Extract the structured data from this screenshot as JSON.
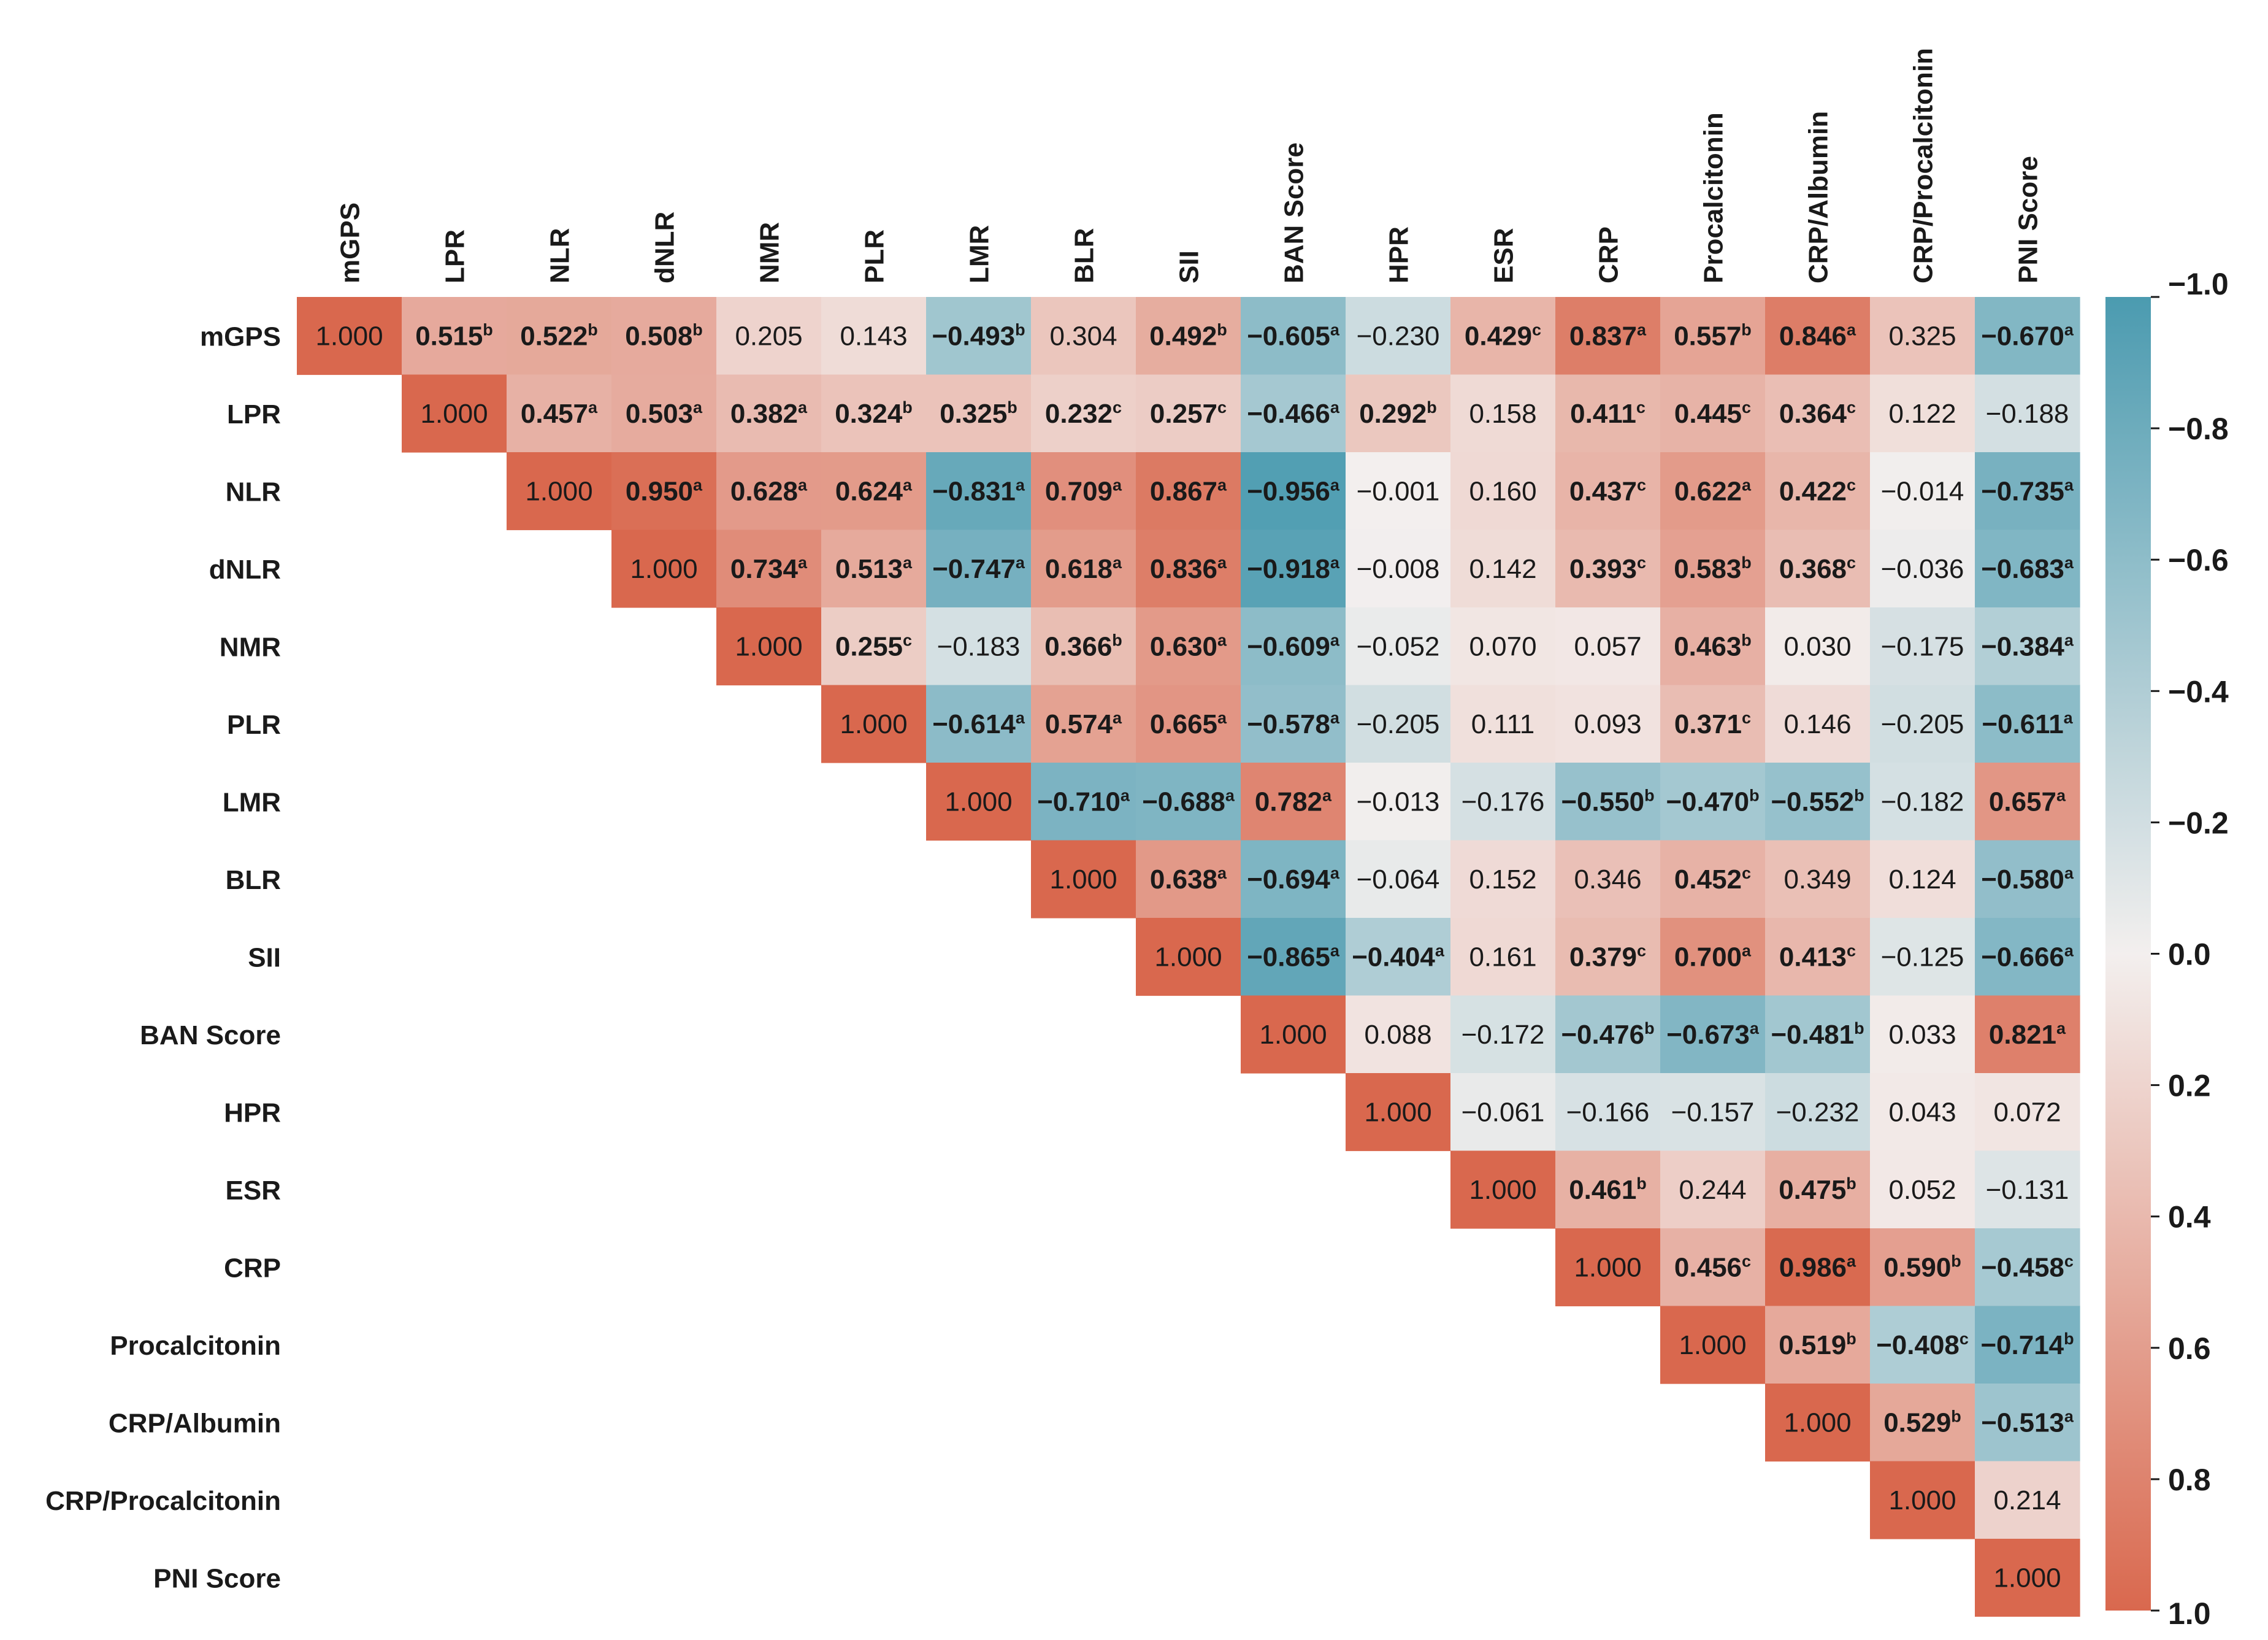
{
  "chart_data": {
    "type": "heatmap",
    "title": "",
    "layout": "upper-triangular correlation matrix",
    "row_labels": [
      "mGPS",
      "LPR",
      "NLR",
      "dNLR",
      "NMR",
      "PLR",
      "LMR",
      "BLR",
      "SII",
      "BAN Score",
      "HPR",
      "ESR",
      "CRP",
      "Procalcitonin",
      "CRP/Albumin",
      "CRP/Procalcitonin",
      "PNI Score"
    ],
    "col_labels": [
      "mGPS",
      "LPR",
      "NLR",
      "dNLR",
      "NMR",
      "PLR",
      "LMR",
      "BLR",
      "SII",
      "BAN Score",
      "HPR",
      "ESR",
      "CRP",
      "Procalcitonin",
      "CRP/Albumin",
      "CRP/Procalcitonin",
      "PNI Score"
    ],
    "rows": [
      [
        [
          "1.000",
          ""
        ],
        [
          "0.515",
          "b"
        ],
        [
          "0.522",
          "b"
        ],
        [
          "0.508",
          "b"
        ],
        [
          "0.205",
          ""
        ],
        [
          "0.143",
          ""
        ],
        [
          "−0.493",
          "b"
        ],
        [
          "0.304",
          ""
        ],
        [
          "0.492",
          "b"
        ],
        [
          "−0.605",
          "a"
        ],
        [
          "−0.230",
          ""
        ],
        [
          "0.429",
          "c"
        ],
        [
          "0.837",
          "a"
        ],
        [
          "0.557",
          "b"
        ],
        [
          "0.846",
          "a"
        ],
        [
          "0.325",
          ""
        ],
        [
          "−0.670",
          "a"
        ]
      ],
      [
        [
          "1.000",
          ""
        ],
        [
          "0.457",
          "a"
        ],
        [
          "0.503",
          "a"
        ],
        [
          "0.382",
          "a"
        ],
        [
          "0.324",
          "b"
        ],
        [
          "0.325",
          "b"
        ],
        [
          "0.232",
          "c"
        ],
        [
          "0.257",
          "c"
        ],
        [
          "−0.466",
          "a"
        ],
        [
          "0.292",
          "b"
        ],
        [
          "0.158",
          ""
        ],
        [
          "0.411",
          "c"
        ],
        [
          "0.445",
          "c"
        ],
        [
          "0.364",
          "c"
        ],
        [
          "0.122",
          ""
        ],
        [
          "−0.188",
          ""
        ]
      ],
      [
        [
          "1.000",
          ""
        ],
        [
          "0.950",
          "a"
        ],
        [
          "0.628",
          "a"
        ],
        [
          "0.624",
          "a"
        ],
        [
          "−0.831",
          "a"
        ],
        [
          "0.709",
          "a"
        ],
        [
          "0.867",
          "a"
        ],
        [
          "−0.956",
          "a"
        ],
        [
          "−0.001",
          ""
        ],
        [
          "0.160",
          ""
        ],
        [
          "0.437",
          "c"
        ],
        [
          "0.622",
          "a"
        ],
        [
          "0.422",
          "c"
        ],
        [
          "−0.014",
          ""
        ],
        [
          "−0.735",
          "a"
        ]
      ],
      [
        [
          "1.000",
          ""
        ],
        [
          "0.734",
          "a"
        ],
        [
          "0.513",
          "a"
        ],
        [
          "−0.747",
          "a"
        ],
        [
          "0.618",
          "a"
        ],
        [
          "0.836",
          "a"
        ],
        [
          "−0.918",
          "a"
        ],
        [
          "−0.008",
          ""
        ],
        [
          "0.142",
          ""
        ],
        [
          "0.393",
          "c"
        ],
        [
          "0.583",
          "b"
        ],
        [
          "0.368",
          "c"
        ],
        [
          "−0.036",
          ""
        ],
        [
          "−0.683",
          "a"
        ]
      ],
      [
        [
          "1.000",
          ""
        ],
        [
          "0.255",
          "c"
        ],
        [
          "−0.183",
          ""
        ],
        [
          "0.366",
          "b"
        ],
        [
          "0.630",
          "a"
        ],
        [
          "−0.609",
          "a"
        ],
        [
          "−0.052",
          ""
        ],
        [
          "0.070",
          ""
        ],
        [
          "0.057",
          ""
        ],
        [
          "0.463",
          "b"
        ],
        [
          "0.030",
          ""
        ],
        [
          "−0.175",
          ""
        ],
        [
          "−0.384",
          "a"
        ]
      ],
      [
        [
          "1.000",
          ""
        ],
        [
          "−0.614",
          "a"
        ],
        [
          "0.574",
          "a"
        ],
        [
          "0.665",
          "a"
        ],
        [
          "−0.578",
          "a"
        ],
        [
          "−0.205",
          ""
        ],
        [
          "0.111",
          ""
        ],
        [
          "0.093",
          ""
        ],
        [
          "0.371",
          "c"
        ],
        [
          "0.146",
          ""
        ],
        [
          "−0.205",
          ""
        ],
        [
          "−0.611",
          "a"
        ]
      ],
      [
        [
          "1.000",
          ""
        ],
        [
          "−0.710",
          "a"
        ],
        [
          "−0.688",
          "a"
        ],
        [
          "0.782",
          "a"
        ],
        [
          "−0.013",
          ""
        ],
        [
          "−0.176",
          ""
        ],
        [
          "−0.550",
          "b"
        ],
        [
          "−0.470",
          "b"
        ],
        [
          "−0.552",
          "b"
        ],
        [
          "−0.182",
          ""
        ],
        [
          "0.657",
          "a"
        ]
      ],
      [
        [
          "1.000",
          ""
        ],
        [
          "0.638",
          "a"
        ],
        [
          "−0.694",
          "a"
        ],
        [
          "−0.064",
          ""
        ],
        [
          "0.152",
          ""
        ],
        [
          "0.346",
          ""
        ],
        [
          "0.452",
          "c"
        ],
        [
          "0.349",
          ""
        ],
        [
          "0.124",
          ""
        ],
        [
          "−0.580",
          "a"
        ]
      ],
      [
        [
          "1.000",
          ""
        ],
        [
          "−0.865",
          "a"
        ],
        [
          "−0.404",
          "a"
        ],
        [
          "0.161",
          ""
        ],
        [
          "0.379",
          "c"
        ],
        [
          "0.700",
          "a"
        ],
        [
          "0.413",
          "c"
        ],
        [
          "−0.125",
          ""
        ],
        [
          "−0.666",
          "a"
        ]
      ],
      [
        [
          "1.000",
          ""
        ],
        [
          "0.088",
          ""
        ],
        [
          "−0.172",
          ""
        ],
        [
          "−0.476",
          "b"
        ],
        [
          "−0.673",
          "a"
        ],
        [
          "−0.481",
          "b"
        ],
        [
          "0.033",
          ""
        ],
        [
          "0.821",
          "a"
        ]
      ],
      [
        [
          "1.000",
          ""
        ],
        [
          "−0.061",
          ""
        ],
        [
          "−0.166",
          ""
        ],
        [
          "−0.157",
          ""
        ],
        [
          "−0.232",
          ""
        ],
        [
          "0.043",
          ""
        ],
        [
          "0.072",
          ""
        ]
      ],
      [
        [
          "1.000",
          ""
        ],
        [
          "0.461",
          "b"
        ],
        [
          "0.244",
          ""
        ],
        [
          "0.475",
          "b"
        ],
        [
          "0.052",
          ""
        ],
        [
          "−0.131",
          ""
        ]
      ],
      [
        [
          "1.000",
          ""
        ],
        [
          "0.456",
          "c"
        ],
        [
          "0.986",
          "a"
        ],
        [
          "0.590",
          "b"
        ],
        [
          "−0.458",
          "c"
        ]
      ],
      [
        [
          "1.000",
          ""
        ],
        [
          "0.519",
          "b"
        ],
        [
          "−0.408",
          "c"
        ],
        [
          "−0.714",
          "b"
        ]
      ],
      [
        [
          "1.000",
          ""
        ],
        [
          "0.529",
          "b"
        ],
        [
          "−0.513",
          "a"
        ]
      ],
      [
        [
          "1.000",
          ""
        ],
        [
          "0.214",
          ""
        ]
      ],
      [
        [
          "1.000",
          ""
        ]
      ]
    ],
    "colorbar": {
      "ticks": [
        "−1.0",
        "−0.8",
        "−0.6",
        "−0.4",
        "−0.2",
        "0.0",
        "0.2",
        "0.4",
        "0.6",
        "0.8",
        "1.0"
      ],
      "range": [
        -1.0,
        1.0
      ],
      "negative_color": "#4b9bb0",
      "zero_color": "#f3efee",
      "positive_color": "#d9684e",
      "orientation": "vertical, -1.0 at top, 1.0 at bottom",
      "position": "right"
    }
  }
}
